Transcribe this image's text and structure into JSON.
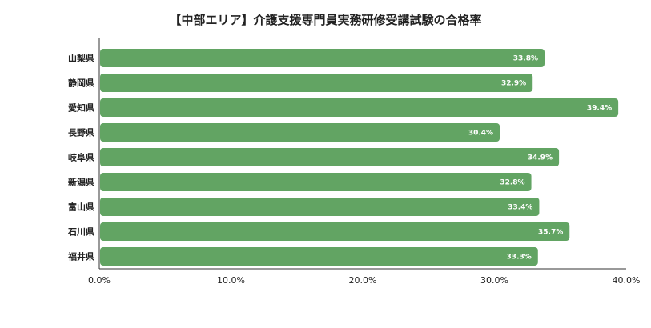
{
  "chart_data": {
    "type": "bar",
    "orientation": "horizontal",
    "title": "【中部エリア】介護支援専門員実務研修受講試験の合格率",
    "categories": [
      "山梨県",
      "静岡県",
      "愛知県",
      "長野県",
      "岐阜県",
      "新潟県",
      "富山県",
      "石川県",
      "福井県"
    ],
    "values": [
      33.8,
      32.9,
      39.4,
      30.4,
      34.9,
      32.8,
      33.4,
      35.7,
      33.3
    ],
    "value_labels": [
      "33.8%",
      "32.9%",
      "39.4%",
      "30.4%",
      "34.9%",
      "32.8%",
      "33.4%",
      "35.7%",
      "33.3%"
    ],
    "xlim": [
      0,
      40
    ],
    "x_ticks": [
      "0.0%",
      "10.0%",
      "20.0%",
      "30.0%",
      "40.0%"
    ],
    "xlabel": "",
    "ylabel": "",
    "grid": false,
    "legend": "none",
    "bar_color": "#62a463"
  }
}
